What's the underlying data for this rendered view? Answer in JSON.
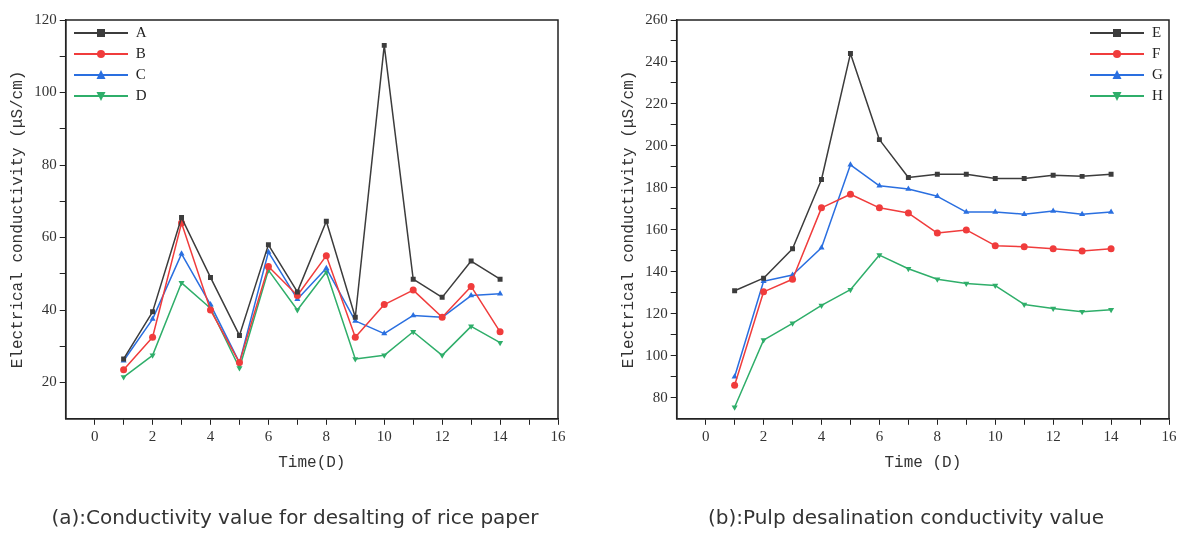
{
  "chart_data": [
    {
      "type": "line",
      "xlabel": "Time(D)",
      "ylabel": "Electrical conductivity (μS/cm)",
      "x": [
        1,
        2,
        3,
        4,
        5,
        6,
        7,
        8,
        9,
        10,
        11,
        12,
        13,
        14
      ],
      "xlim": [
        -1,
        16
      ],
      "xticks": [
        0,
        {
          "value": 1,
          "label": null
        },
        2,
        {
          "value": 3,
          "label": null
        },
        4,
        {
          "value": 5,
          "label": null
        },
        6,
        {
          "value": 7,
          "label": null
        },
        8,
        {
          "value": 9,
          "label": null
        },
        10,
        {
          "value": 11,
          "label": null
        },
        12,
        {
          "value": 13,
          "label": null
        },
        14,
        {
          "value": 15,
          "label": null
        },
        16
      ],
      "ylim": [
        10,
        120
      ],
      "yticks": [
        20,
        {
          "value": 30,
          "label": null
        },
        40,
        {
          "value": 50,
          "label": null
        },
        60,
        {
          "value": 70,
          "label": null
        },
        80,
        {
          "value": 90,
          "label": null
        },
        100,
        {
          "value": 110,
          "label": null
        },
        120
      ],
      "grid": false,
      "legend": "top left",
      "line_style": "solid",
      "series": [
        {
          "name": "A",
          "color": "#3c3c3c",
          "marker": "square",
          "values": [
            26.5,
            39.5,
            65.5,
            49,
            33,
            58,
            45,
            64.5,
            38,
            113,
            48.5,
            43.5,
            53.5,
            48.5
          ]
        },
        {
          "name": "B",
          "color": "#f03c3c",
          "marker": "circle",
          "values": [
            23.5,
            32.5,
            64,
            40,
            25.5,
            52,
            44,
            55,
            32.5,
            41.5,
            45.5,
            38,
            46.5,
            34
          ]
        },
        {
          "name": "C",
          "color": "#2a6fe0",
          "marker": "triangle",
          "values": [
            26,
            37.5,
            55.5,
            41.5,
            25.5,
            56,
            43,
            51.5,
            37,
            33.5,
            38.5,
            38,
            44,
            44.5
          ]
        },
        {
          "name": "D",
          "color": "#2fae6a",
          "marker": "triangle_down",
          "values": [
            21.5,
            27.5,
            47.5,
            40.5,
            24,
            51,
            40,
            50.5,
            26.5,
            27.5,
            34,
            27.5,
            35.5,
            31
          ]
        }
      ],
      "annotations": [
        "(a):Conductivity value for desalting of rice paper"
      ]
    },
    {
      "type": "line",
      "xlabel": "Time (D)",
      "ylabel": "Electrical conductivity (μS/cm)",
      "x": [
        1,
        2,
        3,
        4,
        5,
        6,
        7,
        8,
        9,
        10,
        11,
        12,
        13,
        14
      ],
      "xlim": [
        -1,
        16
      ],
      "xticks": [
        0,
        {
          "value": 1,
          "label": null
        },
        2,
        {
          "value": 3,
          "label": null
        },
        4,
        {
          "value": 5,
          "label": null
        },
        6,
        {
          "value": 7,
          "label": null
        },
        8,
        {
          "value": 9,
          "label": null
        },
        10,
        {
          "value": 11,
          "label": null
        },
        12,
        {
          "value": 13,
          "label": null
        },
        14,
        {
          "value": 15,
          "label": null
        },
        16
      ],
      "ylim": [
        70,
        260
      ],
      "yticks": [
        80,
        {
          "value": 90,
          "label": null
        },
        100,
        {
          "value": 110,
          "label": null
        },
        120,
        {
          "value": 130,
          "label": null
        },
        140,
        {
          "value": 150,
          "label": null
        },
        160,
        {
          "value": 170,
          "label": null
        },
        180,
        {
          "value": 190,
          "label": null
        },
        200,
        {
          "value": 210,
          "label": null
        },
        220,
        {
          "value": 230,
          "label": null
        },
        240,
        {
          "value": 250,
          "label": null
        },
        260
      ],
      "grid": false,
      "legend": "top right",
      "line_style": "solid",
      "series": [
        {
          "name": "E",
          "color": "#3c3c3c",
          "marker": "square",
          "values": [
            131,
            137,
            151,
            184,
            244,
            203,
            185,
            186.5,
            186.5,
            184.5,
            184.5,
            186,
            185.5,
            186.5
          ]
        },
        {
          "name": "F",
          "color": "#f03c3c",
          "marker": "circle",
          "values": [
            86,
            130.5,
            136.5,
            170.5,
            177,
            170.5,
            168,
            158.5,
            160,
            152.5,
            152,
            151,
            150,
            151
          ]
        },
        {
          "name": "G",
          "color": "#2a6fe0",
          "marker": "triangle",
          "values": [
            90,
            135.5,
            138.5,
            151.5,
            191,
            181,
            179.5,
            176,
            168.5,
            168.5,
            167.5,
            169,
            167.5,
            168.5
          ]
        },
        {
          "name": "H",
          "color": "#2fae6a",
          "marker": "triangle_down",
          "values": [
            75.5,
            107.5,
            115.5,
            124,
            131.5,
            148,
            141.5,
            136.5,
            134.5,
            133.5,
            124.5,
            122.5,
            121,
            122
          ]
        }
      ],
      "annotations": [
        "(b):Pulp desalination conductivity value"
      ]
    }
  ]
}
